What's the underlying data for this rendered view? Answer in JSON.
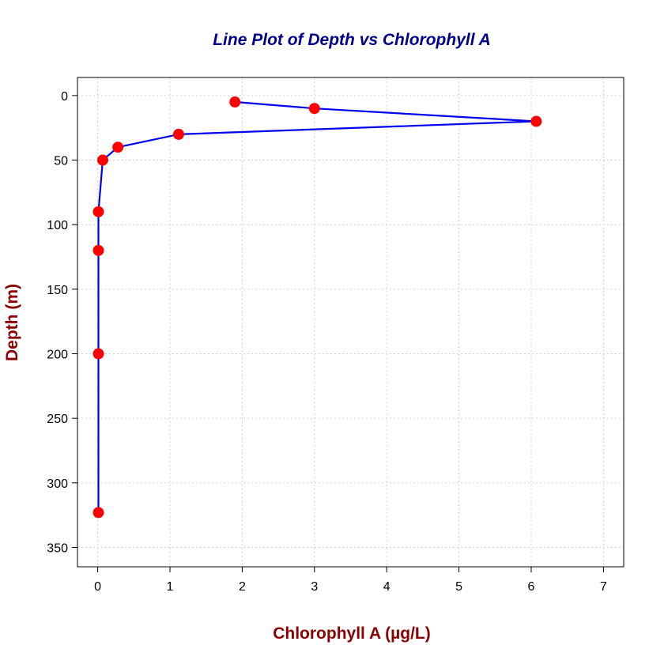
{
  "chart_data": {
    "type": "line",
    "title": "Line Plot of Depth vs Chlorophyll A",
    "xlabel": "Chlorophyll A (µg/L)",
    "ylabel": "Depth (m)",
    "xlim": [
      -0.28,
      7.28
    ],
    "ylim": [
      365,
      -14
    ],
    "y_reversed": true,
    "grid": true,
    "x_ticks": [
      0,
      1,
      2,
      3,
      4,
      5,
      6,
      7
    ],
    "x_tick_labels": [
      "0",
      "1",
      "2",
      "3",
      "4",
      "5",
      "6",
      "7"
    ],
    "y_ticks": [
      0,
      50,
      100,
      150,
      200,
      250,
      300,
      350
    ],
    "y_tick_labels": [
      "0",
      "50",
      "100",
      "150",
      "200",
      "250",
      "300",
      "350"
    ],
    "points": [
      {
        "x": 1.9,
        "y": 5
      },
      {
        "x": 3.0,
        "y": 10
      },
      {
        "x": 6.07,
        "y": 20
      },
      {
        "x": 1.12,
        "y": 30
      },
      {
        "x": 0.28,
        "y": 40
      },
      {
        "x": 0.07,
        "y": 50
      },
      {
        "x": 0.01,
        "y": 90
      },
      {
        "x": 0.01,
        "y": 120
      },
      {
        "x": 0.01,
        "y": 200
      },
      {
        "x": 0.01,
        "y": 323
      }
    ],
    "colors": {
      "line": "#0000EE",
      "marker": "#FF0000",
      "title": "#00008B",
      "axis_label": "#8B0000",
      "grid": "#D3D3D3"
    }
  }
}
